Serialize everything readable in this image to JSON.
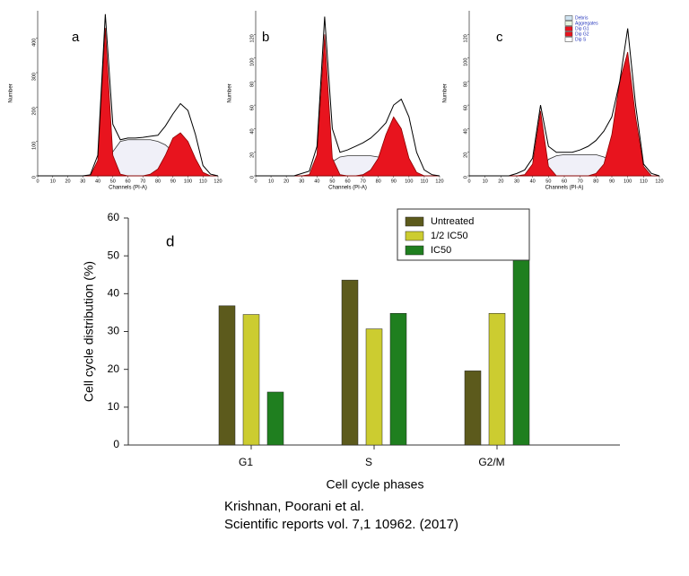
{
  "chart_data": [
    {
      "type": "area",
      "panel_label": "a",
      "x_label": "Channels (PI-A)",
      "y_label": "Number",
      "x": [
        0,
        5,
        10,
        15,
        20,
        25,
        30,
        35,
        40,
        45,
        50,
        55,
        60,
        65,
        70,
        75,
        80,
        85,
        90,
        95,
        100,
        105,
        110,
        115,
        120
      ],
      "xlim": [
        0,
        120
      ],
      "xticks": [
        0,
        10,
        20,
        30,
        40,
        50,
        60,
        70,
        80,
        90,
        100,
        110,
        120
      ],
      "ylim": [
        0,
        480
      ],
      "yticks": [
        0,
        100,
        200,
        300,
        400
      ],
      "series": [
        {
          "color": "#333333",
          "fill": "#f0f0f8",
          "values": [
            0,
            0,
            0,
            0,
            0,
            0,
            0,
            0,
            0,
            20,
            70,
            100,
            105,
            105,
            105,
            105,
            100,
            90,
            70,
            40,
            15,
            0,
            0,
            0,
            0
          ]
        },
        {
          "color": "#8b0000",
          "fill": "#e8141e",
          "values": [
            0,
            0,
            0,
            0,
            0,
            0,
            0,
            0,
            45,
            430,
            60,
            5,
            0,
            0,
            0,
            0,
            0,
            0,
            0,
            0,
            0,
            0,
            0,
            0,
            0
          ]
        },
        {
          "color": "#8b0000",
          "fill": "#e8141e",
          "values": [
            0,
            0,
            0,
            0,
            0,
            0,
            0,
            0,
            0,
            0,
            0,
            0,
            0,
            0,
            0,
            5,
            20,
            60,
            110,
            125,
            100,
            50,
            10,
            0,
            0
          ]
        },
        {
          "color": "#000000",
          "values": [
            0,
            0,
            0,
            0,
            0,
            0,
            0,
            3,
            60,
            470,
            150,
            105,
            110,
            110,
            112,
            115,
            118,
            145,
            180,
            210,
            190,
            120,
            30,
            5,
            0
          ]
        }
      ]
    },
    {
      "type": "area",
      "panel_label": "b",
      "x_label": "Channels (PI-A)",
      "y_label": "Number",
      "x": [
        0,
        5,
        10,
        15,
        20,
        25,
        30,
        35,
        40,
        45,
        50,
        55,
        60,
        65,
        70,
        75,
        80,
        85,
        90,
        95,
        100,
        105,
        110,
        115,
        120
      ],
      "xlim": [
        0,
        120
      ],
      "xticks": [
        0,
        10,
        20,
        30,
        40,
        50,
        60,
        70,
        80,
        90,
        100,
        110,
        120
      ],
      "ylim": [
        0,
        140
      ],
      "yticks": [
        0,
        20,
        40,
        60,
        80,
        100,
        120
      ],
      "series": [
        {
          "color": "#333333",
          "fill": "#f0f0f8",
          "values": [
            0,
            0,
            0,
            0,
            0,
            0,
            0,
            0,
            0,
            5,
            12,
            16,
            17,
            17,
            17,
            17,
            16,
            12,
            7,
            3,
            1,
            0,
            0,
            0,
            0
          ]
        },
        {
          "color": "#8b0000",
          "fill": "#e8141e",
          "values": [
            0,
            0,
            0,
            0,
            0,
            0,
            0,
            1,
            18,
            120,
            15,
            1,
            0,
            0,
            0,
            0,
            0,
            0,
            0,
            0,
            0,
            0,
            0,
            0,
            0
          ]
        },
        {
          "color": "#8b0000",
          "fill": "#e8141e",
          "values": [
            0,
            0,
            0,
            0,
            0,
            0,
            0,
            0,
            0,
            0,
            0,
            0,
            0,
            0,
            1,
            5,
            15,
            35,
            50,
            40,
            15,
            3,
            0,
            0,
            0
          ]
        },
        {
          "color": "#000000",
          "values": [
            0,
            0,
            0,
            0,
            0,
            0,
            2,
            4,
            25,
            135,
            40,
            20,
            22,
            25,
            28,
            32,
            38,
            45,
            60,
            65,
            50,
            20,
            5,
            1,
            0
          ]
        }
      ]
    },
    {
      "type": "area",
      "panel_label": "c",
      "x_label": "Channels (PI-A)",
      "y_label": "Number",
      "x": [
        0,
        5,
        10,
        15,
        20,
        25,
        30,
        35,
        40,
        45,
        50,
        55,
        60,
        65,
        70,
        75,
        80,
        85,
        90,
        95,
        100,
        105,
        110,
        115,
        120
      ],
      "xlim": [
        0,
        120
      ],
      "xticks": [
        0,
        10,
        20,
        30,
        40,
        50,
        60,
        70,
        80,
        90,
        100,
        110,
        120
      ],
      "ylim": [
        0,
        140
      ],
      "yticks": [
        0,
        20,
        40,
        60,
        80,
        100,
        120
      ],
      "legend": [
        {
          "name": "Debris",
          "color": "#cfe3f0"
        },
        {
          "name": "Aggregates",
          "color": "#e8f5e0"
        },
        {
          "name": "Dip G1",
          "color": "#e8141e"
        },
        {
          "name": "Dip G2",
          "color": "#e8141e"
        },
        {
          "name": "Dip S",
          "color": "#ffffff"
        }
      ],
      "series": [
        {
          "color": "#333333",
          "fill": "#f0f0f8",
          "values": [
            0,
            0,
            0,
            0,
            0,
            0,
            0,
            0,
            0,
            4,
            14,
            17,
            18,
            18,
            18,
            18,
            18,
            16,
            12,
            7,
            3,
            0,
            0,
            0,
            0
          ]
        },
        {
          "color": "#8b0000",
          "fill": "#e8141e",
          "values": [
            0,
            0,
            0,
            0,
            0,
            0,
            0,
            1,
            10,
            55,
            8,
            0,
            0,
            0,
            0,
            0,
            0,
            0,
            0,
            0,
            0,
            0,
            0,
            0,
            0
          ]
        },
        {
          "color": "#8b0000",
          "fill": "#e8141e",
          "values": [
            0,
            0,
            0,
            0,
            0,
            0,
            0,
            0,
            0,
            0,
            0,
            0,
            0,
            0,
            0,
            0,
            2,
            10,
            35,
            80,
            105,
            50,
            8,
            0,
            0
          ]
        },
        {
          "color": "#000000",
          "values": [
            0,
            0,
            0,
            0,
            0,
            0,
            2,
            5,
            15,
            60,
            25,
            20,
            20,
            20,
            22,
            25,
            30,
            38,
            50,
            80,
            125,
            60,
            10,
            2,
            0
          ]
        }
      ]
    },
    {
      "type": "bar",
      "panel_label": "d",
      "x_label": "Cell cycle phases",
      "y_label": "Cell cycle distribution (%)",
      "categories": [
        "G1",
        "S",
        "G2/M"
      ],
      "ylim": [
        0,
        60
      ],
      "yticks": [
        0,
        10,
        20,
        30,
        40,
        50,
        60
      ],
      "series": [
        {
          "name": "Untreated",
          "color": "#5c5a1c",
          "values": [
            36.8,
            43.6,
            19.6
          ]
        },
        {
          "name": "1/2 IC50",
          "color": "#cccc30",
          "values": [
            34.5,
            30.7,
            34.8
          ]
        },
        {
          "name": "IC50",
          "color": "#1f7f1f",
          "values": [
            14,
            34.8,
            51
          ]
        }
      ]
    }
  ],
  "citation": [
    "Krishnan, Poorani et al.",
    "Scientific reports vol. 7,1 10962. (2017)"
  ]
}
